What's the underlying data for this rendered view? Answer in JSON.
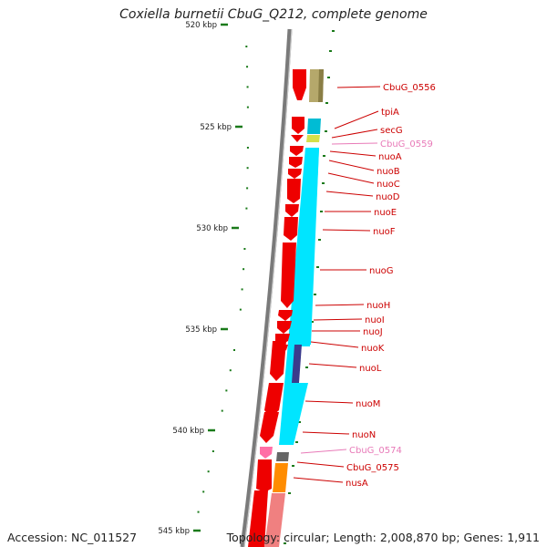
{
  "title": "Coxiella burnetii CbuG_Q212, complete genome",
  "footer": {
    "accession": "Accession: NC_011527",
    "topology": "Topology: circular; Length: 2,008,870 bp; Genes: 1,911"
  },
  "scale": {
    "ticks": [
      "520 kbp",
      "525 kbp",
      "530 kbp",
      "535 kbp",
      "540 kbp",
      "545 kbp"
    ]
  },
  "genes": [
    {
      "label": "CbuG_0556",
      "color": "#cc0000"
    },
    {
      "label": "tpiA",
      "color": "#cc0000"
    },
    {
      "label": "secG",
      "color": "#cc0000"
    },
    {
      "label": "CbuG_0559",
      "color": "#e87ab8"
    },
    {
      "label": "nuoA",
      "color": "#cc0000"
    },
    {
      "label": "nuoB",
      "color": "#cc0000"
    },
    {
      "label": "nuoC",
      "color": "#cc0000"
    },
    {
      "label": "nuoD",
      "color": "#cc0000"
    },
    {
      "label": "nuoE",
      "color": "#cc0000"
    },
    {
      "label": "nuoF",
      "color": "#cc0000"
    },
    {
      "label": "nuoG",
      "color": "#cc0000"
    },
    {
      "label": "nuoH",
      "color": "#cc0000"
    },
    {
      "label": "nuoI",
      "color": "#cc0000"
    },
    {
      "label": "nuoJ",
      "color": "#cc0000"
    },
    {
      "label": "nuoK",
      "color": "#cc0000"
    },
    {
      "label": "nuoL",
      "color": "#cc0000"
    },
    {
      "label": "nuoM",
      "color": "#cc0000"
    },
    {
      "label": "nuoN",
      "color": "#cc0000"
    },
    {
      "label": "CbuG_0574",
      "color": "#e87ab8"
    },
    {
      "label": "CbuG_0575",
      "color": "#cc0000"
    },
    {
      "label": "nusA",
      "color": "#cc0000"
    }
  ]
}
